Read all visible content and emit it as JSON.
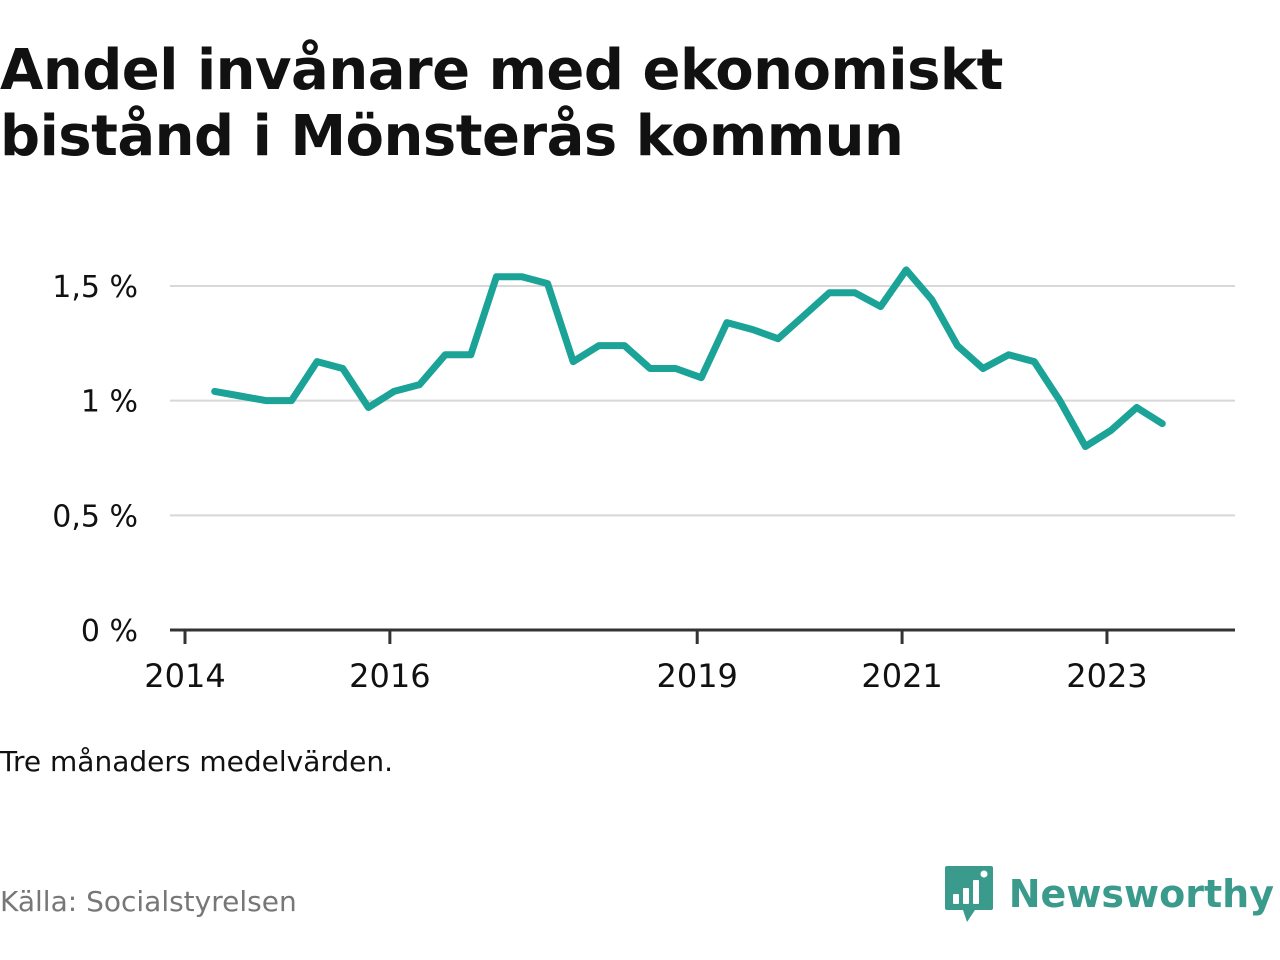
{
  "title_line1": "Andel invånare med ekonomiskt",
  "title_line2": "bistånd i Mönsterås kommun",
  "note": "Tre månaders medelvärden.",
  "source": "Källa: Socialstyrelsen",
  "brand": {
    "name": "Newsworthy",
    "icon": "newsworthy-logo-icon",
    "color": "#3a9b8c"
  },
  "colors": {
    "line": "#1aa396",
    "grid": "#d8d8d8",
    "axis": "#333333",
    "text": "#111111",
    "muted": "#777777"
  },
  "chart_data": {
    "type": "line",
    "title": "Andel invånare med ekonomiskt bistånd i Mönsterås kommun",
    "xlabel": "",
    "ylabel": "",
    "ylim": [
      0,
      1.6
    ],
    "yticks": [
      {
        "value": 0,
        "label": "0 %"
      },
      {
        "value": 0.5,
        "label": "0,5 %"
      },
      {
        "value": 1,
        "label": "1 %"
      },
      {
        "value": 1.5,
        "label": "1,5 %"
      }
    ],
    "xlim": [
      2014,
      2024.25
    ],
    "xticks": [
      {
        "value": 2014,
        "label": "2014"
      },
      {
        "value": 2016,
        "label": "2016"
      },
      {
        "value": 2019,
        "label": "2019"
      },
      {
        "value": 2021,
        "label": "2021"
      },
      {
        "value": 2023,
        "label": "2023"
      }
    ],
    "grid": true,
    "legend": "none",
    "series": [
      {
        "unit": "%",
        "x": [
          2014.29,
          2014.54,
          2014.79,
          2015.04,
          2015.29,
          2015.54,
          2015.79,
          2016.04,
          2016.29,
          2016.54,
          2016.79,
          2017.04,
          2017.29,
          2017.54,
          2017.79,
          2018.04,
          2018.29,
          2018.54,
          2018.79,
          2019.04,
          2019.29,
          2019.54,
          2019.79,
          2020.04,
          2020.29,
          2020.54,
          2020.79,
          2021.04,
          2021.29,
          2021.54,
          2021.79,
          2022.04,
          2022.29,
          2022.54,
          2022.79,
          2023.04,
          2023.29,
          2023.54
        ],
        "values": [
          1.04,
          1.02,
          1.0,
          1.0,
          1.17,
          1.14,
          0.97,
          1.04,
          1.07,
          1.2,
          1.2,
          1.54,
          1.54,
          1.51,
          1.17,
          1.24,
          1.24,
          1.14,
          1.14,
          1.1,
          1.34,
          1.31,
          1.27,
          1.37,
          1.47,
          1.47,
          1.41,
          1.57,
          1.44,
          1.24,
          1.14,
          1.2,
          1.17,
          1.0,
          0.8,
          0.87,
          0.97,
          0.9
        ]
      }
    ]
  }
}
